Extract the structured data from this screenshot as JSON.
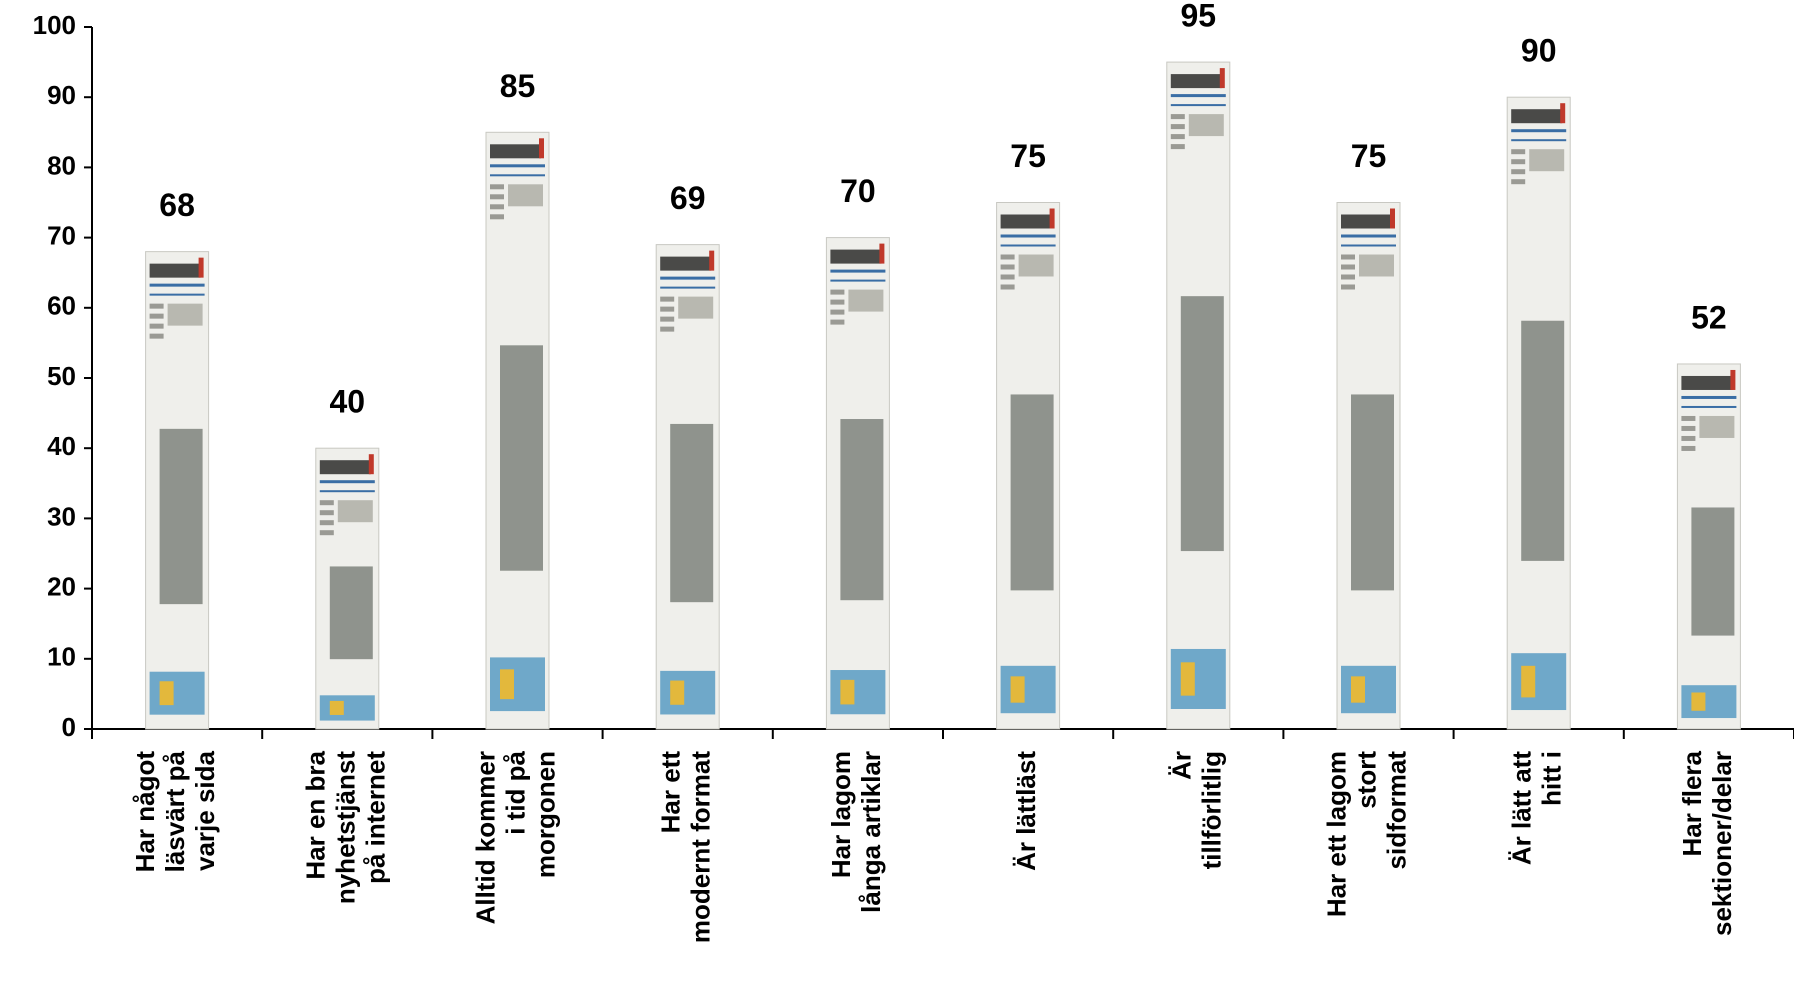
{
  "chart_data": {
    "type": "bar",
    "categories": [
      "Har något läsvärt på varje sida",
      "Har en bra nyhetstjänst på internet",
      "Alltid kommer i tid på morgonen",
      "Har ett modernt format",
      "Har lagom långa artiklar",
      "Är lättläst",
      "Är tillförlitlig",
      "Har ett lagom stort sidformat",
      "Är lätt att hitt i",
      "Har flera sektioner/delar"
    ],
    "values": [
      68,
      40,
      85,
      69,
      70,
      75,
      95,
      75,
      90,
      52
    ],
    "ylim": [
      0,
      100
    ],
    "yticks": [
      0,
      10,
      20,
      30,
      40,
      50,
      60,
      70,
      80,
      90,
      100
    ],
    "color": "#efefeb",
    "grid": false
  }
}
